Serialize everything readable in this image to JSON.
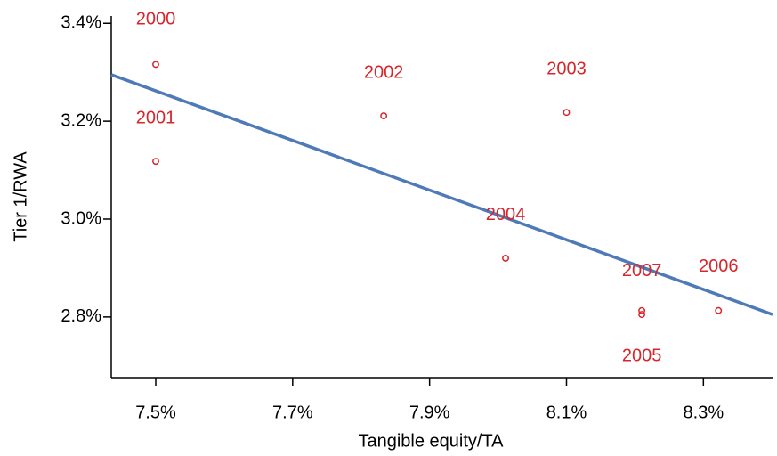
{
  "chart_data": {
    "type": "scatter",
    "x_label": "Tangible equity/TA",
    "y_label": "Tier 1/RWA",
    "x": [
      7.5,
      7.5,
      7.833,
      8.1,
      8.011,
      8.21,
      8.322,
      8.21
    ],
    "y": [
      3.316,
      3.118,
      3.211,
      3.218,
      2.92,
      2.805,
      2.813,
      2.813
    ],
    "point_labels": [
      "2000",
      "2001",
      "2002",
      "2003",
      "2004",
      "2005",
      "2006",
      "2007"
    ],
    "color": "#d7262b",
    "fit": {
      "type": "line",
      "x": [
        7.435,
        8.401
      ],
      "y": [
        3.295,
        2.805
      ],
      "color": "#4f7ab8"
    },
    "xlim": [
      7.435,
      8.401
    ],
    "ylim": [
      2.676,
      3.415
    ],
    "xticks": [
      {
        "value": 7.5,
        "label": "7.5%"
      },
      {
        "value": 7.7,
        "label": "7.7%"
      },
      {
        "value": 7.9,
        "label": "7.9%"
      },
      {
        "value": 8.1,
        "label": "8.1%"
      },
      {
        "value": 8.3,
        "label": "8.3%"
      }
    ],
    "yticks": [
      {
        "value": 2.8,
        "label": "2.8%"
      },
      {
        "value": 3.0,
        "label": "3.0%"
      },
      {
        "value": 3.2,
        "label": "3.2%"
      },
      {
        "value": 3.4,
        "label": "3.4%"
      }
    ]
  }
}
